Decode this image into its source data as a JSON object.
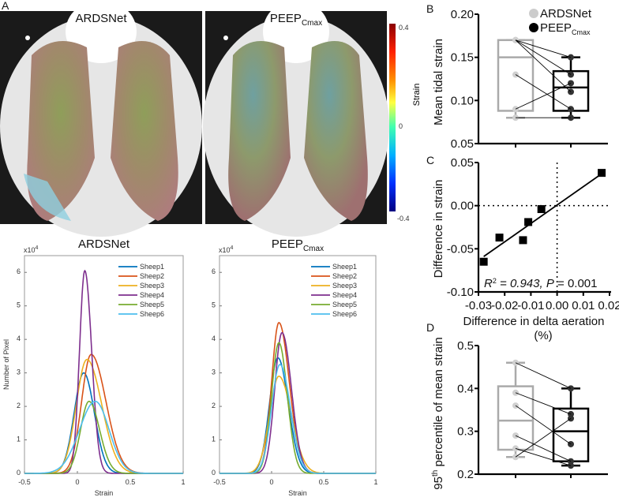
{
  "panel_labels": {
    "a": "A",
    "b": "B",
    "c": "C",
    "d": "D"
  },
  "panel_a": {
    "image_left_title": "ARDSNet",
    "image_right_title_main": "PEEP",
    "image_right_title_sub": "Cmax",
    "colorbar": {
      "label": "Strain",
      "max": "0.4",
      "mid": "0",
      "min": "-0.4"
    }
  },
  "chart_data": [
    {
      "type": "line",
      "id": "hist-ardsnet",
      "title": "ARDSNet",
      "xlabel": "Strain",
      "ylabel": "Number of Pixel",
      "yscale_label": "x10",
      "yscale_exp": "4",
      "xlim": [
        -0.5,
        1
      ],
      "ylim": [
        0,
        6.5
      ],
      "xticks": [
        "-0.5",
        "0",
        "0.5",
        "1"
      ],
      "yticks": [
        "0",
        "1",
        "2",
        "3",
        "4",
        "5",
        "6"
      ],
      "legend": "top-right",
      "series": [
        {
          "name": "Sheep1",
          "color": "#0072BD",
          "peak_strain": 0.06,
          "peak_count": 3.0,
          "sd_left": 0.09,
          "sd_right": 0.1
        },
        {
          "name": "Sheep2",
          "color": "#D95319",
          "peak_strain": 0.13,
          "peak_count": 3.55,
          "sd_left": 0.09,
          "sd_right": 0.14
        },
        {
          "name": "Sheep3",
          "color": "#EDB120",
          "peak_strain": 0.09,
          "peak_count": 3.4,
          "sd_left": 0.1,
          "sd_right": 0.14
        },
        {
          "name": "Sheep4",
          "color": "#7E2F8E",
          "peak_strain": 0.07,
          "peak_count": 6.05,
          "sd_left": 0.05,
          "sd_right": 0.065
        },
        {
          "name": "Sheep5",
          "color": "#77AC30",
          "peak_strain": 0.11,
          "peak_count": 2.15,
          "sd_left": 0.08,
          "sd_right": 0.1
        },
        {
          "name": "Sheep6",
          "color": "#4DBEEE",
          "peak_strain": 0.17,
          "peak_count": 2.15,
          "sd_left": 0.15,
          "sd_right": 0.13
        }
      ]
    },
    {
      "type": "line",
      "id": "hist-peep",
      "title_main": "PEEP",
      "title_sub": "Cmax",
      "xlabel": "Strain",
      "yscale_label": "x10",
      "yscale_exp": "4",
      "xlim": [
        -0.5,
        1
      ],
      "ylim": [
        0,
        6.5
      ],
      "xticks": [
        "-0.5",
        "0",
        "0.5",
        "1"
      ],
      "yticks": [
        "0",
        "1",
        "2",
        "3",
        "4",
        "5",
        "6"
      ],
      "legend": "top-right",
      "series": [
        {
          "name": "Sheep1",
          "color": "#0072BD",
          "peak_strain": 0.06,
          "peak_count": 3.45,
          "sd_left": 0.08,
          "sd_right": 0.1
        },
        {
          "name": "Sheep2",
          "color": "#D95319",
          "peak_strain": 0.07,
          "peak_count": 4.5,
          "sd_left": 0.07,
          "sd_right": 0.1
        },
        {
          "name": "Sheep3",
          "color": "#EDB120",
          "peak_strain": 0.07,
          "peak_count": 2.9,
          "sd_left": 0.09,
          "sd_right": 0.12
        },
        {
          "name": "Sheep4",
          "color": "#7E2F8E",
          "peak_strain": 0.1,
          "peak_count": 4.2,
          "sd_left": 0.07,
          "sd_right": 0.09
        },
        {
          "name": "Sheep5",
          "color": "#77AC30",
          "peak_strain": 0.07,
          "peak_count": 3.9,
          "sd_left": 0.07,
          "sd_right": 0.08
        },
        {
          "name": "Sheep6",
          "color": "#4DBEEE",
          "peak_strain": 0.08,
          "peak_count": 3.25,
          "sd_left": 0.08,
          "sd_right": 0.1
        }
      ]
    },
    {
      "type": "box",
      "id": "mean-tidal-strain",
      "ylabel": "Mean tidal strain",
      "ylim": [
        0.05,
        0.2
      ],
      "yticks": [
        "0.05",
        "0.10",
        "0.15",
        "0.20"
      ],
      "legend": "top-right",
      "groups": [
        {
          "name": "ARDSNet",
          "color": "#c8c8c8",
          "values": [
            0.17,
            0.17,
            0.17,
            0.13,
            0.09,
            0.08
          ],
          "whisker": [
            0.08,
            0.17
          ],
          "q1": 0.088,
          "median": 0.15,
          "q3": 0.17
        },
        {
          "name_main": "PEEP",
          "name_sub": "Cmax",
          "color": "#000000",
          "values": [
            0.15,
            0.13,
            0.11,
            0.09,
            0.12,
            0.08
          ],
          "whisker": [
            0.08,
            0.15
          ],
          "q1": 0.088,
          "median": 0.115,
          "q3": 0.134
        }
      ]
    },
    {
      "type": "scatter",
      "id": "strain-vs-aeration",
      "xlabel_line1": "Difference in delta aeration",
      "xlabel_line2": "(%)",
      "ylabel": "Difference in strain",
      "xlim": [
        -0.03,
        0.02
      ],
      "ylim": [
        -0.1,
        0.05
      ],
      "xticks": [
        "-0.03",
        "-0.02",
        "-0.01",
        "0.00",
        "0.01",
        "0.02"
      ],
      "yticks": [
        "-0.10",
        "-0.05",
        "0.00",
        "0.05"
      ],
      "points": [
        [
          -0.028,
          -0.065
        ],
        [
          -0.022,
          -0.037
        ],
        [
          -0.013,
          -0.04
        ],
        [
          -0.011,
          -0.019
        ],
        [
          -0.006,
          -0.004
        ],
        [
          0.017,
          0.038
        ]
      ],
      "fit": {
        "x": [
          -0.028,
          0.017
        ],
        "y": [
          -0.059,
          0.037
        ]
      },
      "annotation": {
        "r2_label": "R",
        "r2_exp": "2",
        "r2_text": " = 0.943, ",
        "p_label": "P",
        "p_text": " = 0.001"
      }
    },
    {
      "type": "box",
      "id": "p95-mean-strain",
      "ylabel_pre": "95",
      "ylabel_sup": "th",
      "ylabel_post": " percentile of mean strain",
      "ylim": [
        0.2,
        0.5
      ],
      "yticks": [
        "0.2",
        "0.3",
        "0.4",
        "0.5"
      ],
      "groups": [
        {
          "name": "ARDSNet",
          "color": "#c8c8c8",
          "values": [
            0.46,
            0.39,
            0.36,
            0.29,
            0.26,
            0.24
          ],
          "whisker": [
            0.24,
            0.46
          ],
          "q1": 0.257,
          "median": 0.325,
          "q3": 0.405
        },
        {
          "name": "PEEPCmax",
          "color": "#000000",
          "values": [
            0.4,
            0.34,
            0.27,
            0.23,
            0.22,
            0.33
          ],
          "whisker": [
            0.22,
            0.4
          ],
          "q1": 0.23,
          "median": 0.3,
          "q3": 0.353
        }
      ]
    }
  ]
}
